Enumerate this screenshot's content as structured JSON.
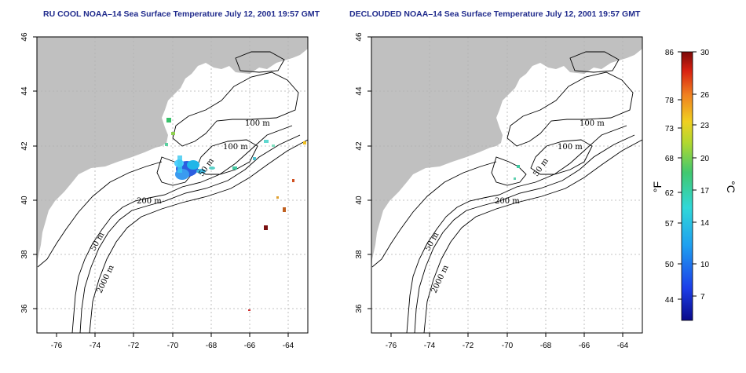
{
  "maps": [
    {
      "title": "RU COOL NOAA–14 Sea Surface Temperature July 12, 2001 19:57 GMT",
      "x_ticks": [
        "-76",
        "-74",
        "-72",
        "-70",
        "-68",
        "-66",
        "-64"
      ],
      "y_ticks": [
        "46",
        "44",
        "42",
        "40",
        "38",
        "36"
      ],
      "contour_labels": [
        "100 m",
        "100 m",
        "50 m",
        "200 m",
        "50 m",
        "2000 m"
      ]
    },
    {
      "title": "DECLOUDED NOAA–14 Sea Surface Temperature July 12, 2001 19:57 GMT",
      "x_ticks": [
        "-76",
        "-74",
        "-72",
        "-70",
        "-68",
        "-66",
        "-64"
      ],
      "y_ticks": [
        "46",
        "44",
        "42",
        "40",
        "38",
        "36"
      ],
      "contour_labels": [
        "100 m",
        "100 m",
        "50 m",
        "200 m",
        "50 m",
        "2000 m"
      ]
    }
  ],
  "colorbar": {
    "unit_left": "°F",
    "unit_right": "°C",
    "fahrenheit_ticks": [
      "86",
      "78",
      "73",
      "68",
      "62",
      "57",
      "50",
      "44"
    ],
    "celsius_ticks": [
      "30",
      "26",
      "23",
      "20",
      "17",
      "14",
      "10",
      "7"
    ]
  },
  "colors": {
    "land": "#c0c0c0",
    "ocean": "#ffffff",
    "title": "#1f2a8c",
    "grid": "#b0b0b0"
  }
}
